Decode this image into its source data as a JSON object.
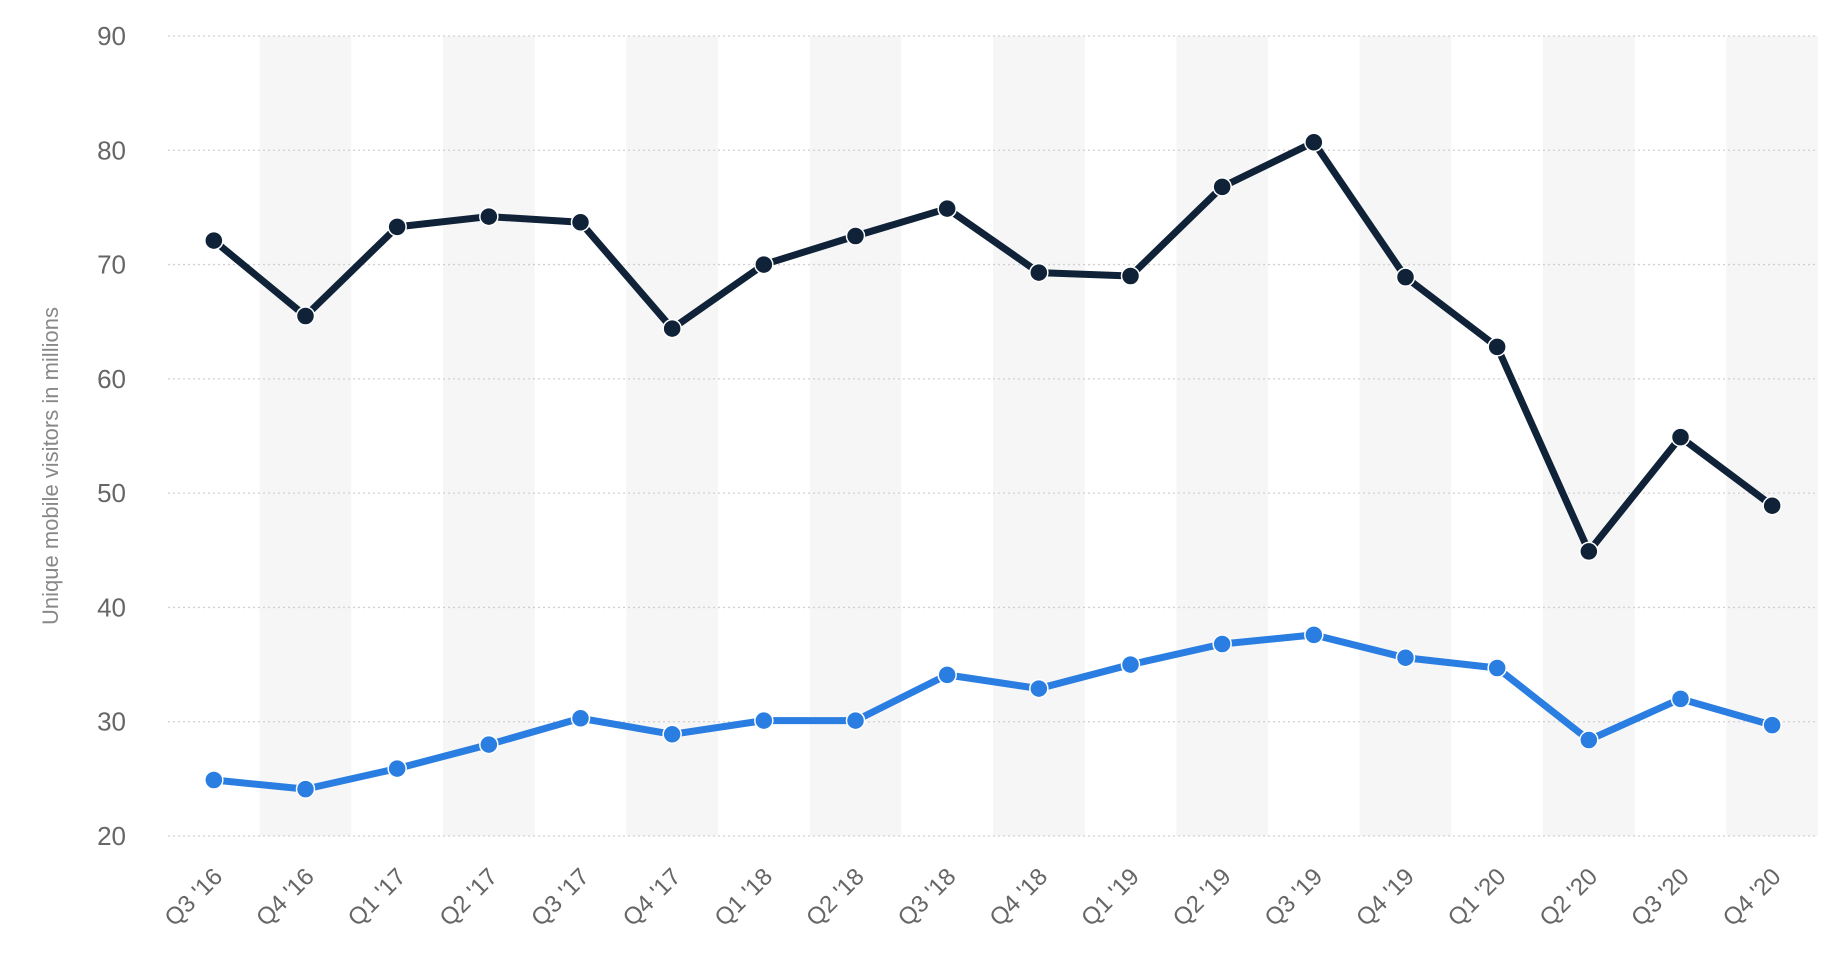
{
  "chart_data": {
    "type": "line",
    "title": "",
    "xlabel": "",
    "ylabel": "Unique mobile visitors in millions",
    "ylim": [
      20,
      90
    ],
    "yticks": [
      20,
      30,
      40,
      50,
      60,
      70,
      80,
      90
    ],
    "grid": true,
    "legend": "none",
    "categories": [
      "Q3 '16",
      "Q4 '16",
      "Q1 '17",
      "Q2 '17",
      "Q3 '17",
      "Q4 '17",
      "Q1 '18",
      "Q2 '18",
      "Q3 '18",
      "Q4 '18",
      "Q1 '19",
      "Q2 '19",
      "Q3 '19",
      "Q4 '19",
      "Q1 '20",
      "Q2 '20",
      "Q3 '20",
      "Q4 '20"
    ],
    "series": [
      {
        "color": "#0f2238",
        "values": [
          72.1,
          65.5,
          73.3,
          74.2,
          73.7,
          64.4,
          70.0,
          72.5,
          74.9,
          69.3,
          69.0,
          76.8,
          80.7,
          68.9,
          62.8,
          44.9,
          54.9,
          48.9
        ]
      },
      {
        "color": "#2a7de1",
        "values": [
          24.9,
          24.1,
          25.9,
          28.0,
          30.3,
          28.9,
          30.1,
          30.1,
          34.1,
          32.9,
          35.0,
          36.8,
          37.6,
          35.6,
          34.7,
          28.4,
          32.0,
          29.7
        ]
      }
    ]
  }
}
